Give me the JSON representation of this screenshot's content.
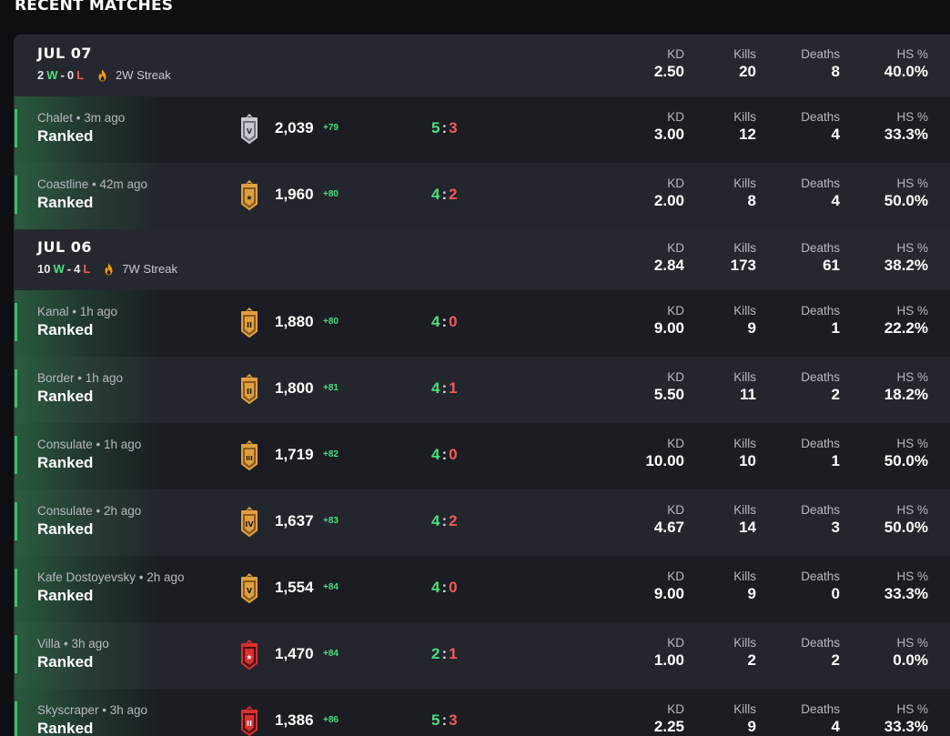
{
  "section_title": "RECENT MATCHES",
  "stat_labels": {
    "kd": "KD",
    "kills": "Kills",
    "deaths": "Deaths",
    "hs": "HS %"
  },
  "days": [
    {
      "date": "JUL 07",
      "wins": "2",
      "w_label": "W",
      "sep": "-",
      "losses": "0",
      "l_label": "L",
      "streak": "2W Streak",
      "kd": "2.50",
      "kills": "20",
      "deaths": "8",
      "hs": "40.0%",
      "matches": [
        {
          "map_line": "Chalet • 3m ago",
          "mode": "Ranked",
          "rank_icon": "rank-platinum-5-icon",
          "rank_tier": "V",
          "rank_color": "silver",
          "mmr": "2,039",
          "delta": "+79",
          "score_left": "5",
          "score_right": "3",
          "kd": "3.00",
          "kills": "12",
          "deaths": "4",
          "hs": "33.3%"
        },
        {
          "map_line": "Coastline • 42m ago",
          "mode": "Ranked",
          "rank_icon": "rank-gold-star-icon",
          "rank_tier": "★",
          "rank_color": "gold",
          "mmr": "1,960",
          "delta": "+80",
          "score_left": "4",
          "score_right": "2",
          "kd": "2.00",
          "kills": "8",
          "deaths": "4",
          "hs": "50.0%"
        }
      ]
    },
    {
      "date": "JUL 06",
      "wins": "10",
      "w_label": "W",
      "sep": "-",
      "losses": "4",
      "l_label": "L",
      "streak": "7W Streak",
      "kd": "2.84",
      "kills": "173",
      "deaths": "61",
      "hs": "38.2%",
      "matches": [
        {
          "map_line": "Kanal • 1h ago",
          "mode": "Ranked",
          "rank_icon": "rank-gold-2-icon",
          "rank_tier": "II",
          "rank_color": "gold",
          "mmr": "1,880",
          "delta": "+80",
          "score_left": "4",
          "score_right": "0",
          "kd": "9.00",
          "kills": "9",
          "deaths": "1",
          "hs": "22.2%"
        },
        {
          "map_line": "Border • 1h ago",
          "mode": "Ranked",
          "rank_icon": "rank-gold-2-icon",
          "rank_tier": "II",
          "rank_color": "gold",
          "mmr": "1,800",
          "delta": "+81",
          "score_left": "4",
          "score_right": "1",
          "kd": "5.50",
          "kills": "11",
          "deaths": "2",
          "hs": "18.2%"
        },
        {
          "map_line": "Consulate • 1h ago",
          "mode": "Ranked",
          "rank_icon": "rank-gold-3-icon",
          "rank_tier": "III",
          "rank_color": "gold",
          "mmr": "1,719",
          "delta": "+82",
          "score_left": "4",
          "score_right": "0",
          "kd": "10.00",
          "kills": "10",
          "deaths": "1",
          "hs": "50.0%"
        },
        {
          "map_line": "Consulate • 2h ago",
          "mode": "Ranked",
          "rank_icon": "rank-gold-4-icon",
          "rank_tier": "IV",
          "rank_color": "gold",
          "mmr": "1,637",
          "delta": "+83",
          "score_left": "4",
          "score_right": "2",
          "kd": "4.67",
          "kills": "14",
          "deaths": "3",
          "hs": "50.0%"
        },
        {
          "map_line": "Kafe Dostoyevsky • 2h ago",
          "mode": "Ranked",
          "rank_icon": "rank-gold-5-icon",
          "rank_tier": "V",
          "rank_color": "gold",
          "mmr": "1,554",
          "delta": "+84",
          "score_left": "4",
          "score_right": "0",
          "kd": "9.00",
          "kills": "9",
          "deaths": "0",
          "hs": "33.3%"
        },
        {
          "map_line": "Villa • 3h ago",
          "mode": "Ranked",
          "rank_icon": "rank-red-star-icon",
          "rank_tier": "★",
          "rank_color": "red",
          "mmr": "1,470",
          "delta": "+84",
          "score_left": "2",
          "score_right": "1",
          "kd": "1.00",
          "kills": "2",
          "deaths": "2",
          "hs": "0.0%"
        },
        {
          "map_line": "Skyscraper • 3h ago",
          "mode": "Ranked",
          "rank_icon": "rank-red-2-icon",
          "rank_tier": "II",
          "rank_color": "red",
          "mmr": "1,386",
          "delta": "+86",
          "score_left": "5",
          "score_right": "3",
          "kd": "2.25",
          "kills": "9",
          "deaths": "4",
          "hs": "33.3%"
        }
      ]
    }
  ],
  "colors": {
    "win": "#4ade80",
    "loss": "#ef5a5a",
    "gold": "#e0a040",
    "silver": "#c8cad0",
    "red": "#e03a3a"
  }
}
